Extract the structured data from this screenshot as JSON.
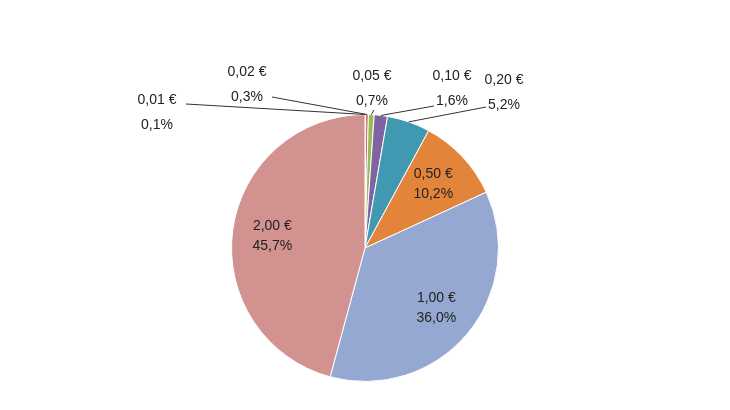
{
  "chart_data": {
    "type": "pie",
    "categories": [
      "0,01 €",
      "0,02 €",
      "0,05 €",
      "0,10 €",
      "0,20 €",
      "0,50 €",
      "1,00 €",
      "2,00 €"
    ],
    "values": [
      0.1,
      0.3,
      0.7,
      1.6,
      5.2,
      10.2,
      36.0,
      45.7
    ],
    "value_labels": [
      "0,1%",
      "0,3%",
      "0,7%",
      "1,6%",
      "5,2%",
      "10,2%",
      "36,0%",
      "45,7%"
    ],
    "colors": [
      "#4f81bd",
      "#c0504d",
      "#9bbb59",
      "#8064a2",
      "#4198b1",
      "#e3843b",
      "#95a8d2",
      "#d19290"
    ],
    "data_labels": true
  }
}
